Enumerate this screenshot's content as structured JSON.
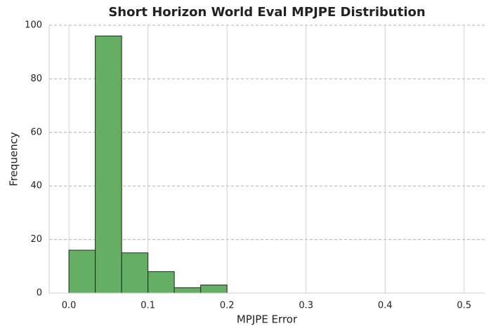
{
  "chart_data": {
    "type": "histogram",
    "title": "Short Horizon World Eval MPJPE Distribution",
    "xlabel": "MPJPE Error",
    "ylabel": "Frequency",
    "bins": [
      0,
      0.0333,
      0.0667,
      0.1,
      0.1333,
      0.1667,
      0.2,
      0.2333,
      0.2667,
      0.3,
      0.3333,
      0.3667,
      0.4,
      0.4333,
      0.4667,
      0.5
    ],
    "values": [
      16,
      96,
      15,
      8,
      2,
      3,
      0,
      0,
      0,
      0,
      0,
      0,
      0,
      0,
      0
    ],
    "color": "#5dab5d",
    "edgecolor": "#1a2e1a",
    "xlim": [
      -0.025,
      0.526
    ],
    "ylim": [
      0,
      100
    ],
    "xticks": [
      {
        "value": 0,
        "label": "0.0"
      },
      {
        "value": 0.1,
        "label": "0.1"
      },
      {
        "value": 0.2,
        "label": "0.2"
      },
      {
        "value": 0.3,
        "label": "0.3"
      },
      {
        "value": 0.4,
        "label": "0.4"
      },
      {
        "value": 0.5,
        "label": "0.5"
      }
    ],
    "yticks": [
      0,
      20,
      40,
      60,
      80,
      100
    ],
    "grid": true
  }
}
